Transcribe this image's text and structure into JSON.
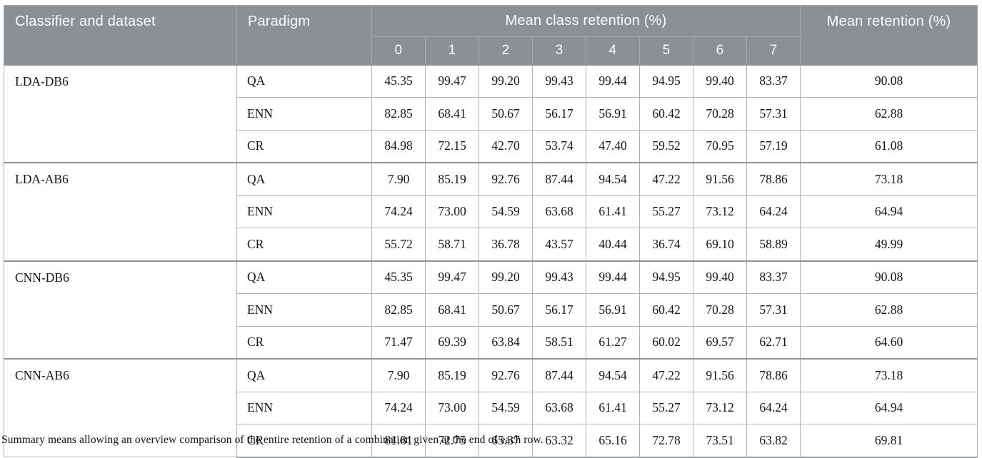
{
  "header": {
    "classifier_col": "Classifier and dataset",
    "paradigm_col": "Paradigm",
    "class_retention_col": "Mean class retention (%)",
    "class_labels": [
      "0",
      "1",
      "2",
      "3",
      "4",
      "5",
      "6",
      "7"
    ],
    "mean_retention_col": "Mean retention (%)"
  },
  "groups": [
    {
      "classifier": "LDA-DB6",
      "rows": [
        {
          "paradigm": "QA",
          "values": [
            "45.35",
            "99.47",
            "99.20",
            "99.43",
            "99.44",
            "94.95",
            "99.40",
            "83.37"
          ],
          "mean": "90.08"
        },
        {
          "paradigm": "ENN",
          "values": [
            "82.85",
            "68.41",
            "50.67",
            "56.17",
            "56.91",
            "60.42",
            "70.28",
            "57.31"
          ],
          "mean": "62.88"
        },
        {
          "paradigm": "CR",
          "values": [
            "84.98",
            "72.15",
            "42.70",
            "53.74",
            "47.40",
            "59.52",
            "70.95",
            "57.19"
          ],
          "mean": "61.08"
        }
      ]
    },
    {
      "classifier": "LDA-AB6",
      "rows": [
        {
          "paradigm": "QA",
          "values": [
            "7.90",
            "85.19",
            "92.76",
            "87.44",
            "94.54",
            "47.22",
            "91.56",
            "78.86"
          ],
          "mean": "73.18"
        },
        {
          "paradigm": "ENN",
          "values": [
            "74.24",
            "73.00",
            "54.59",
            "63.68",
            "61.41",
            "55.27",
            "73.12",
            "64.24"
          ],
          "mean": "64.94"
        },
        {
          "paradigm": "CR",
          "values": [
            "55.72",
            "58.71",
            "36.78",
            "43.57",
            "40.44",
            "36.74",
            "69.10",
            "58.89"
          ],
          "mean": "49.99"
        }
      ]
    },
    {
      "classifier": "CNN-DB6",
      "rows": [
        {
          "paradigm": "QA",
          "values": [
            "45.35",
            "99.47",
            "99.20",
            "99.43",
            "99.44",
            "94.95",
            "99.40",
            "83.37"
          ],
          "mean": "90.08"
        },
        {
          "paradigm": "ENN",
          "values": [
            "82.85",
            "68.41",
            "50.67",
            "56.17",
            "56.91",
            "60.42",
            "70.28",
            "57.31"
          ],
          "mean": "62.88"
        },
        {
          "paradigm": "CR",
          "values": [
            "71.47",
            "69.39",
            "63.84",
            "58.51",
            "61.27",
            "60.02",
            "69.57",
            "62.71"
          ],
          "mean": "64.60"
        }
      ]
    },
    {
      "classifier": "CNN-AB6",
      "rows": [
        {
          "paradigm": "QA",
          "values": [
            "7.90",
            "85.19",
            "92.76",
            "87.44",
            "94.54",
            "47.22",
            "91.56",
            "78.86"
          ],
          "mean": "73.18"
        },
        {
          "paradigm": "ENN",
          "values": [
            "74.24",
            "73.00",
            "54.59",
            "63.68",
            "61.41",
            "55.27",
            "73.12",
            "64.24"
          ],
          "mean": "64.94"
        },
        {
          "paradigm": "CR",
          "values": [
            "81.81",
            "72.75",
            "65.37",
            "63.32",
            "65.16",
            "72.78",
            "73.51",
            "63.82"
          ],
          "mean": "69.81"
        }
      ]
    }
  ],
  "footnote": "Summary means allowing an overview comparison of the entire retention of a combination given at the end of each row.",
  "colors": {
    "header_bg": "#8b9094",
    "header_text": "#fbfbfb",
    "header_divider": "#a6aaac",
    "body_border": "#b0b4b5",
    "group_border": "#8f9496",
    "body_text": "#141414"
  }
}
